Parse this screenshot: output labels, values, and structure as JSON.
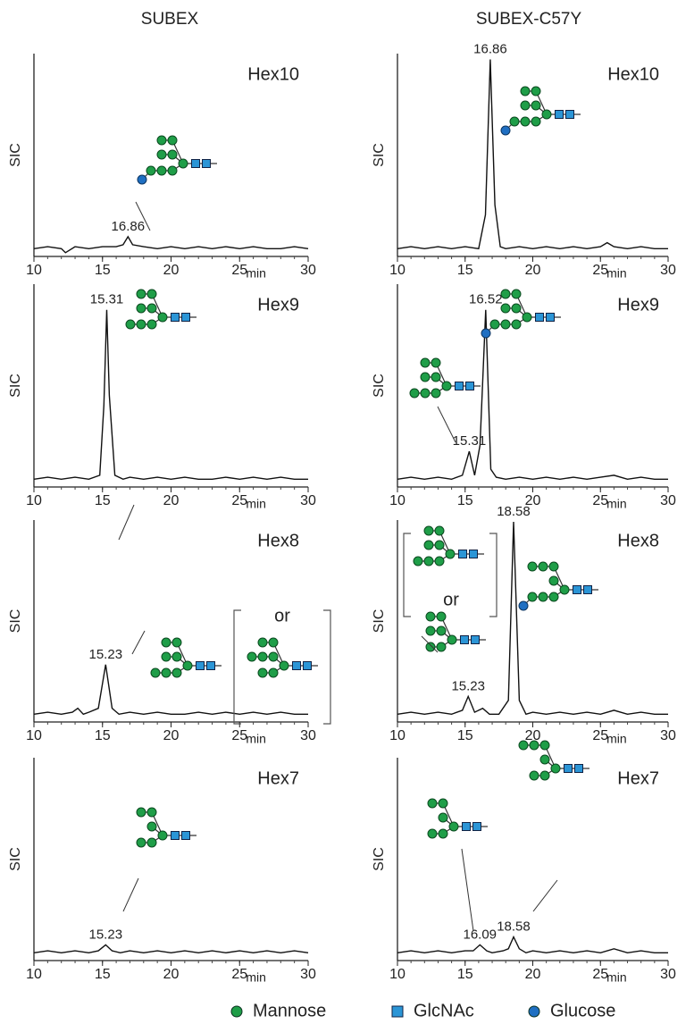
{
  "headers": [
    "SUBEX",
    "SUBEX-C57Y"
  ],
  "legend": [
    {
      "name": "Mannose",
      "color": "#1f9e48"
    },
    {
      "name": "GlcNAc",
      "color": "#2b95d6"
    },
    {
      "name": "Glucose",
      "color": "#1f6fc2"
    }
  ],
  "chart_data": [
    {
      "type": "line",
      "title": "Hex10",
      "ylabel": "SIC",
      "xlabel": "min",
      "xlim": [
        10,
        30
      ],
      "xticks": [
        10,
        15,
        20,
        25,
        30
      ],
      "ylim": [
        0,
        100
      ],
      "color": "#111111",
      "x": [
        10,
        11,
        12,
        12.3,
        13,
        14,
        15,
        16,
        16.5,
        16.86,
        17.2,
        18,
        19,
        20,
        21,
        22,
        23,
        24,
        25,
        26,
        27,
        28,
        29,
        30
      ],
      "values": [
        3,
        4,
        3,
        1,
        4,
        3,
        4,
        4,
        5,
        9,
        5,
        4,
        3,
        4,
        3,
        4,
        3,
        4,
        3,
        4,
        3,
        3,
        4,
        3
      ],
      "peak_labels": [
        {
          "value": 16.86,
          "label": "16.86"
        }
      ]
    },
    {
      "type": "line",
      "title": "Hex10",
      "ylabel": "SIC",
      "xlabel": "min",
      "xlim": [
        10,
        30
      ],
      "xticks": [
        10,
        15,
        20,
        25,
        30
      ],
      "ylim": [
        0,
        100
      ],
      "color": "#111111",
      "x": [
        10,
        11,
        12,
        13,
        14,
        15,
        16,
        16.5,
        16.86,
        17.2,
        17.6,
        18,
        19,
        20,
        21,
        22,
        23,
        24,
        25,
        25.5,
        26,
        27,
        28,
        29,
        30
      ],
      "values": [
        3,
        4,
        3,
        4,
        3,
        4,
        3,
        20,
        98,
        25,
        4,
        3,
        4,
        3,
        4,
        3,
        4,
        3,
        4,
        6,
        4,
        3,
        4,
        3,
        3
      ],
      "peak_labels": [
        {
          "value": 16.86,
          "label": "16.86"
        }
      ]
    },
    {
      "type": "line",
      "title": "Hex9",
      "ylabel": "SIC",
      "xlabel": "min",
      "xlim": [
        10,
        30
      ],
      "xticks": [
        10,
        15,
        20,
        25,
        30
      ],
      "ylim": [
        0,
        100
      ],
      "color": "#111111",
      "x": [
        10,
        11,
        12,
        13,
        14,
        14.8,
        15.1,
        15.31,
        15.5,
        15.9,
        16.5,
        17,
        18,
        19,
        20,
        21,
        22,
        23,
        24,
        25,
        26,
        27,
        28,
        29,
        30
      ],
      "values": [
        3,
        4,
        3,
        4,
        3,
        5,
        40,
        88,
        45,
        5,
        3,
        4,
        3,
        4,
        3,
        4,
        3,
        3,
        4,
        3,
        4,
        3,
        4,
        3,
        3
      ],
      "peak_labels": [
        {
          "value": 15.31,
          "label": "15.31"
        }
      ]
    },
    {
      "type": "line",
      "title": "Hex9",
      "ylabel": "SIC",
      "xlabel": "min",
      "xlim": [
        10,
        30
      ],
      "xticks": [
        10,
        15,
        20,
        25,
        30
      ],
      "ylim": [
        0,
        100
      ],
      "color": "#111111",
      "x": [
        10,
        11,
        12,
        13,
        14,
        14.8,
        15.31,
        15.7,
        16.1,
        16.52,
        16.9,
        17.3,
        18,
        19,
        20,
        21,
        22,
        23,
        24,
        25,
        26,
        27,
        28,
        29,
        30
      ],
      "values": [
        3,
        4,
        3,
        4,
        3,
        5,
        17,
        5,
        20,
        88,
        8,
        4,
        3,
        4,
        3,
        4,
        3,
        4,
        3,
        4,
        5,
        3,
        4,
        3,
        3
      ],
      "peak_labels": [
        {
          "value": 15.31,
          "label": "15.31"
        },
        {
          "value": 16.52,
          "label": "16.52"
        }
      ]
    },
    {
      "type": "line",
      "title": "Hex8",
      "ylabel": "SIC",
      "xlabel": "min",
      "xlim": [
        10,
        30
      ],
      "xticks": [
        10,
        15,
        20,
        25,
        30
      ],
      "ylim": [
        0,
        100
      ],
      "color": "#111111",
      "note": "or",
      "x": [
        10,
        11,
        12,
        12.8,
        13.2,
        13.6,
        14,
        14.7,
        15.23,
        15.7,
        16.2,
        17,
        18,
        19,
        20,
        21,
        22,
        23,
        24,
        25,
        26,
        27,
        28,
        29,
        30
      ],
      "values": [
        3,
        4,
        3,
        4,
        6,
        3,
        4,
        6,
        28,
        6,
        3,
        4,
        3,
        4,
        3,
        3,
        4,
        3,
        4,
        3,
        4,
        3,
        4,
        3,
        3
      ],
      "peak_labels": [
        {
          "value": 15.23,
          "label": "15.23"
        }
      ]
    },
    {
      "type": "line",
      "title": "Hex8",
      "ylabel": "SIC",
      "xlabel": "min",
      "xlim": [
        10,
        30
      ],
      "xticks": [
        10,
        15,
        20,
        25,
        30
      ],
      "ylim": [
        0,
        100
      ],
      "color": "#111111",
      "note": "or",
      "x": [
        10,
        11,
        12,
        13,
        14,
        14.8,
        15.23,
        15.7,
        16.3,
        16.8,
        17.5,
        18.2,
        18.58,
        19,
        19.5,
        20,
        21,
        22,
        23,
        24,
        25,
        26,
        27,
        28,
        29,
        30
      ],
      "values": [
        3,
        4,
        3,
        4,
        3,
        5,
        12,
        4,
        6,
        3,
        3,
        10,
        100,
        10,
        3,
        4,
        3,
        4,
        3,
        4,
        3,
        5,
        3,
        4,
        3,
        3
      ],
      "peak_labels": [
        {
          "value": 15.23,
          "label": "15.23"
        },
        {
          "value": 18.58,
          "label": "18.58"
        }
      ]
    },
    {
      "type": "line",
      "title": "Hex7",
      "ylabel": "SIC",
      "xlabel": "min",
      "xlim": [
        10,
        30
      ],
      "xticks": [
        10,
        15,
        20,
        25,
        30
      ],
      "ylim": [
        0,
        100
      ],
      "color": "#111111",
      "x": [
        10,
        11,
        12,
        13,
        14,
        14.7,
        15.23,
        15.7,
        16.3,
        17,
        18,
        19,
        20,
        21,
        22,
        23,
        24,
        25,
        26,
        27,
        28,
        29,
        30
      ],
      "values": [
        3,
        4,
        3,
        4,
        3,
        4,
        7,
        4,
        3,
        4,
        3,
        4,
        3,
        4,
        3,
        4,
        3,
        4,
        3,
        4,
        3,
        4,
        3
      ],
      "peak_labels": [
        {
          "value": 15.23,
          "label": "15.23"
        }
      ]
    },
    {
      "type": "line",
      "title": "Hex7",
      "ylabel": "SIC",
      "xlabel": "min",
      "xlim": [
        10,
        30
      ],
      "xticks": [
        10,
        15,
        20,
        25,
        30
      ],
      "ylim": [
        0,
        100
      ],
      "color": "#111111",
      "x": [
        10,
        11,
        12,
        13,
        14,
        15,
        15.6,
        16.09,
        16.6,
        17,
        17.8,
        18.2,
        18.58,
        19.0,
        19.5,
        20,
        21,
        22,
        23,
        24,
        25,
        26,
        27,
        28,
        29,
        30
      ],
      "values": [
        3,
        4,
        3,
        4,
        3,
        4,
        4,
        7,
        4,
        3,
        4,
        5,
        11,
        5,
        3,
        4,
        3,
        4,
        3,
        4,
        3,
        5,
        3,
        4,
        3,
        3
      ],
      "peak_labels": [
        {
          "value": 16.09,
          "label": "16.09"
        },
        {
          "value": 18.58,
          "label": "18.58"
        }
      ]
    }
  ]
}
